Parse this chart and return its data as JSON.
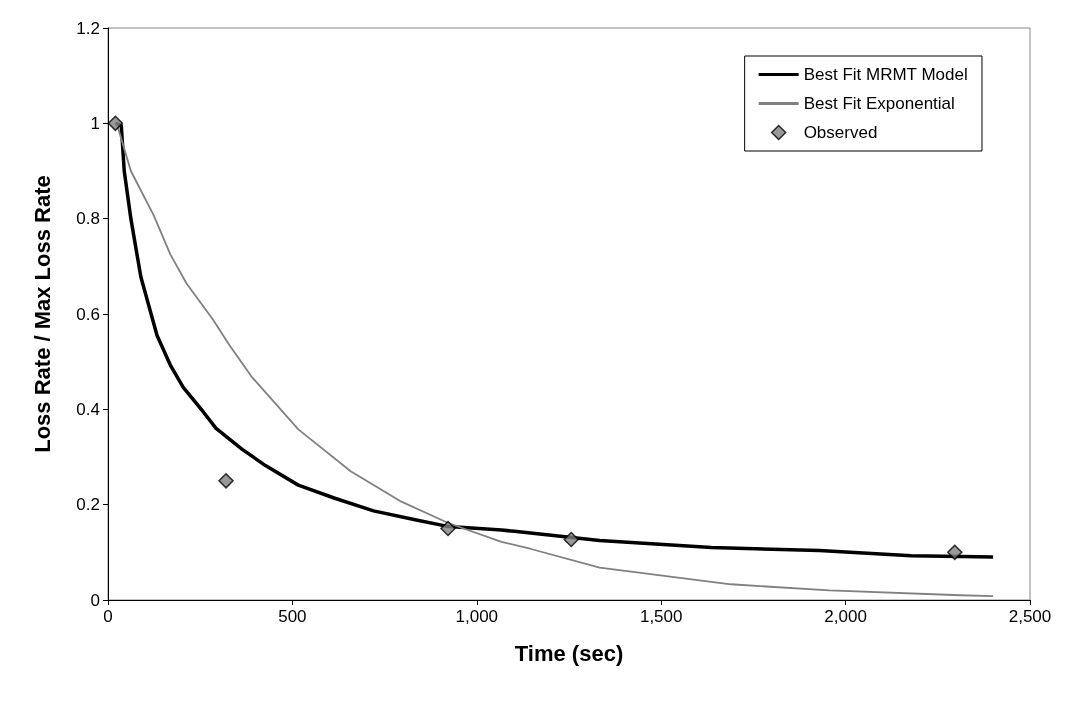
{
  "chart_data": {
    "type": "line",
    "xlabel": "Time (sec)",
    "ylabel": "Loss Rate / Max Loss Rate",
    "xlim": [
      0,
      2500
    ],
    "xticks": [
      0,
      500,
      {
        "value": 1000,
        "label": "1,000"
      },
      {
        "value": 1500,
        "label": "1,500"
      },
      {
        "value": 2000,
        "label": "2,000"
      },
      {
        "value": 2500,
        "label": "2,500"
      }
    ],
    "ylim": [
      0,
      1.2
    ],
    "yticks": [
      0,
      0.2,
      0.4,
      0.6,
      0.8,
      1,
      1.2
    ],
    "grid": false,
    "legend": "top right",
    "series": [
      {
        "name": "Best Fit MRMT Model",
        "color": "#000000",
        "marker": "none",
        "x": [
          20,
          36,
          44,
          62,
          89,
          133,
          169,
          204,
          258,
          293,
          364,
          427,
          516,
          613,
          720,
          836,
          924,
          1067,
          1102,
          1333,
          1636,
          1929,
          2178,
          2400
        ],
        "values": [
          1,
          0.995,
          0.9,
          0.8,
          0.678,
          0.555,
          0.493,
          0.446,
          0.395,
          0.36,
          0.316,
          0.282,
          0.241,
          0.214,
          0.187,
          0.168,
          0.154,
          0.147,
          0.144,
          0.125,
          0.11,
          0.104,
          0.093,
          0.09
        ]
      },
      {
        "name": "Best Fit Exponential",
        "color": "#808080",
        "marker": "none",
        "x": [
          20,
          27,
          62,
          124,
          169,
          213,
          284,
          329,
          391,
          516,
          658,
          791,
          924,
          1067,
          1147,
          1333,
          1689,
          1956,
          2311,
          2400
        ],
        "values": [
          1,
          0.991,
          0.9,
          0.807,
          0.725,
          0.664,
          0.589,
          0.535,
          0.467,
          0.358,
          0.27,
          0.208,
          0.161,
          0.122,
          0.107,
          0.068,
          0.033,
          0.02,
          0.01,
          0.008
        ]
      },
      {
        "name": "Observed",
        "type": "scatter",
        "color": "#808080",
        "marker": "diamond",
        "x": [
          20,
          320,
          922,
          1256,
          2296
        ],
        "values": [
          1,
          0.25,
          0.15,
          0.127,
          0.1
        ]
      }
    ]
  }
}
